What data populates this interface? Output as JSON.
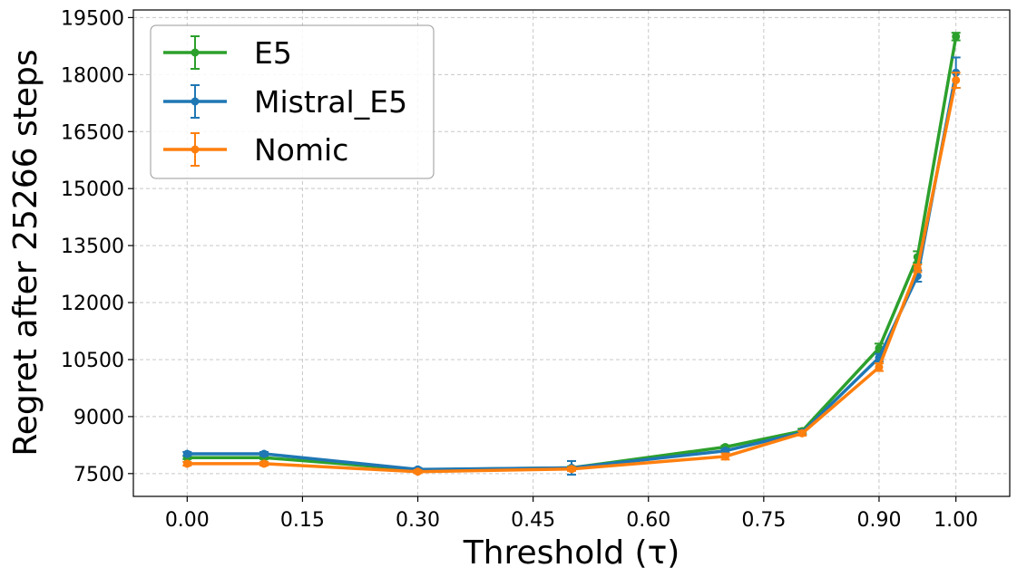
{
  "chart_data": {
    "type": "line",
    "xlabel": "Threshold (τ)",
    "ylabel": "Regret after 25266 steps",
    "xlim": [
      -0.07,
      1.07
    ],
    "ylim": [
      6900,
      19700
    ],
    "xticks": [
      "0.00",
      "0.15",
      "0.30",
      "0.45",
      "0.60",
      "0.75",
      "0.90",
      "1.00"
    ],
    "xtick_values": [
      0.0,
      0.15,
      0.3,
      0.45,
      0.6,
      0.75,
      0.9,
      1.0
    ],
    "yticks": [
      "7500",
      "9000",
      "10500",
      "12000",
      "13500",
      "15000",
      "16500",
      "18000",
      "19500"
    ],
    "ytick_values": [
      7500,
      9000,
      10500,
      12000,
      13500,
      15000,
      16500,
      18000,
      19500
    ],
    "grid": true,
    "legend_position": "top-left",
    "x": [
      0.0,
      0.1,
      0.3,
      0.5,
      0.7,
      0.8,
      0.9,
      0.95,
      1.0
    ],
    "series": [
      {
        "name": "E5",
        "color": "#2ca02c",
        "values": [
          7920,
          7920,
          7600,
          7650,
          8200,
          8620,
          10800,
          13200,
          19000
        ],
        "errors": [
          40,
          40,
          30,
          40,
          40,
          60,
          120,
          150,
          100
        ]
      },
      {
        "name": "Mistral_E5",
        "color": "#1f77b4",
        "values": [
          8020,
          8020,
          7610,
          7650,
          8100,
          8580,
          10550,
          12700,
          18050
        ],
        "errors": [
          50,
          50,
          40,
          180,
          50,
          60,
          100,
          150,
          400
        ]
      },
      {
        "name": "Nomic",
        "color": "#ff7f0e",
        "values": [
          7760,
          7760,
          7550,
          7620,
          7950,
          8560,
          10300,
          12900,
          17850
        ],
        "errors": [
          50,
          50,
          40,
          50,
          80,
          60,
          100,
          100,
          200
        ]
      }
    ]
  }
}
